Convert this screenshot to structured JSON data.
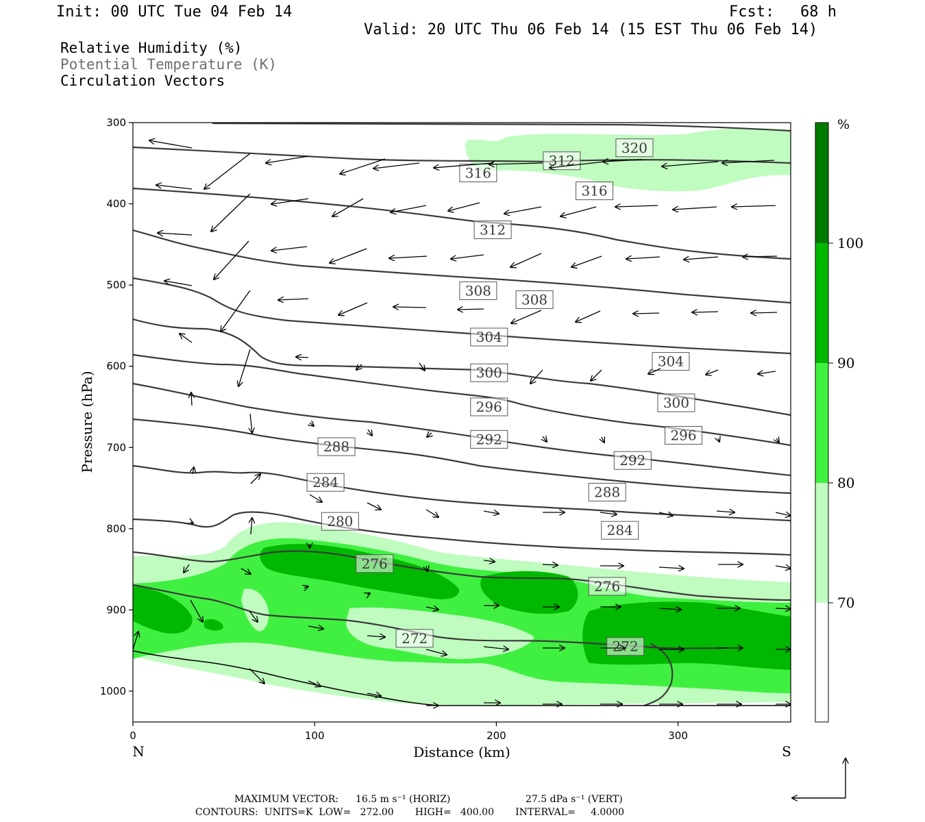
{
  "header": {
    "init": "Init: 00 UTC Tue 04 Feb 14",
    "fcst_label": "Fcst:",
    "fcst_value": "68 h",
    "valid": "Valid: 20 UTC Thu 06 Feb 14 (15 EST Thu 06 Feb 14)"
  },
  "legend": {
    "rh": "Relative Humidity (%)",
    "theta": "Potential Temperature (K)",
    "vectors": "Circulation Vectors"
  },
  "colors": {
    "rh_70_80": "#c0fcc0",
    "rh_80_90": "#40f040",
    "rh_90_100": "#00b800",
    "rh_100": "#007a00",
    "contour": "#3a3a3a",
    "background": "#ffffff"
  },
  "chart_data": {
    "type": "cross-section",
    "xlabel": "Distance (km)",
    "ylabel": "Pressure (hPa)",
    "x_ticks": [
      "0",
      "100",
      "200",
      "300"
    ],
    "x_tick_values": [
      0,
      100,
      200,
      300
    ],
    "xlim": [
      0,
      362
    ],
    "y_ticks": [
      "300",
      "400",
      "500",
      "600",
      "700",
      "800",
      "900",
      "1000"
    ],
    "y_tick_values": [
      300,
      400,
      500,
      600,
      700,
      800,
      900,
      1000
    ],
    "ylim": [
      300,
      1038
    ],
    "y_inverted": true,
    "left_end_label": "N",
    "right_end_label": "S",
    "colorbar": {
      "unit": "%",
      "levels": [
        "70",
        "80",
        "90",
        "100"
      ],
      "level_values": [
        70,
        80,
        90,
        100
      ]
    },
    "theta_contour_labels": [
      {
        "label": "320",
        "x": 276,
        "p": 331
      },
      {
        "label": "316",
        "x": 190,
        "p": 362
      },
      {
        "label": "316",
        "x": 254,
        "p": 384
      },
      {
        "label": "312",
        "x": 198,
        "p": 432
      },
      {
        "label": "312",
        "x": 236,
        "p": 347
      },
      {
        "label": "308",
        "x": 190,
        "p": 507
      },
      {
        "label": "308",
        "x": 221,
        "p": 518
      },
      {
        "label": "304",
        "x": 196,
        "p": 564
      },
      {
        "label": "304",
        "x": 296,
        "p": 594
      },
      {
        "label": "300",
        "x": 196,
        "p": 608
      },
      {
        "label": "300",
        "x": 299,
        "p": 645
      },
      {
        "label": "296",
        "x": 196,
        "p": 650
      },
      {
        "label": "296",
        "x": 303,
        "p": 685
      },
      {
        "label": "292",
        "x": 196,
        "p": 690
      },
      {
        "label": "292",
        "x": 275,
        "p": 716
      },
      {
        "label": "288",
        "x": 112,
        "p": 699
      },
      {
        "label": "288",
        "x": 261,
        "p": 755
      },
      {
        "label": "284",
        "x": 106,
        "p": 743
      },
      {
        "label": "284",
        "x": 268,
        "p": 802
      },
      {
        "label": "280",
        "x": 114,
        "p": 791
      },
      {
        "label": "276",
        "x": 133,
        "p": 843
      },
      {
        "label": "276",
        "x": 261,
        "p": 871
      },
      {
        "label": "272",
        "x": 155,
        "p": 935
      },
      {
        "label": "272",
        "x": 271,
        "p": 945
      }
    ],
    "footer": {
      "max_vector_label": "MAXIMUM VECTOR:",
      "horiz_value": "16.5 m s⁻¹ (HORIZ)",
      "vert_value": "27.5 dPa s⁻¹ (VERT)",
      "contours_text": "CONTOURS:  UNITS=K  LOW=   272.00       HIGH=   400.00       INTERVAL=     4.0000"
    }
  }
}
